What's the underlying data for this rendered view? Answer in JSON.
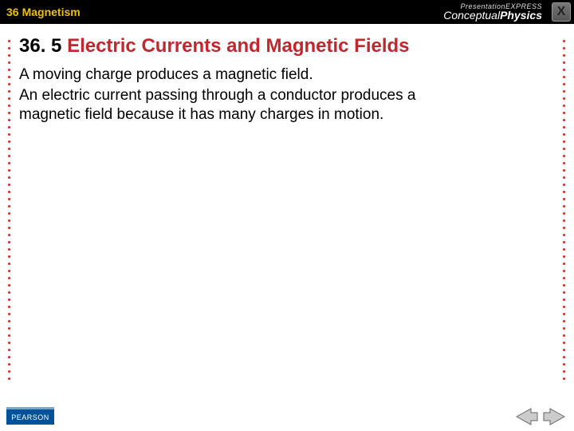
{
  "chapter": {
    "number": "36",
    "title": "Magnetism"
  },
  "brand": {
    "express": "PresentationEXPRESS",
    "book_light": "Conceptual",
    "book_heavy": "Physics"
  },
  "close": {
    "label": "X"
  },
  "section": {
    "number": "36. 5",
    "title": "Electric Currents and Magnetic Fields"
  },
  "body": {
    "p1": "A moving charge produces a magnetic field.",
    "p2": "An electric current passing through a conductor produces a magnetic field because it has many charges in motion."
  },
  "footer": {
    "publisher": "PEARSON"
  },
  "colors": {
    "accent_red": "#c1272d",
    "dot_red": "#d42a1f",
    "topbar_bg": "#000000",
    "chapter_yellow": "#f0c000",
    "pearson_blue": "#00539b",
    "arrow_fill": "#cccccc",
    "arrow_stroke": "#666666"
  }
}
